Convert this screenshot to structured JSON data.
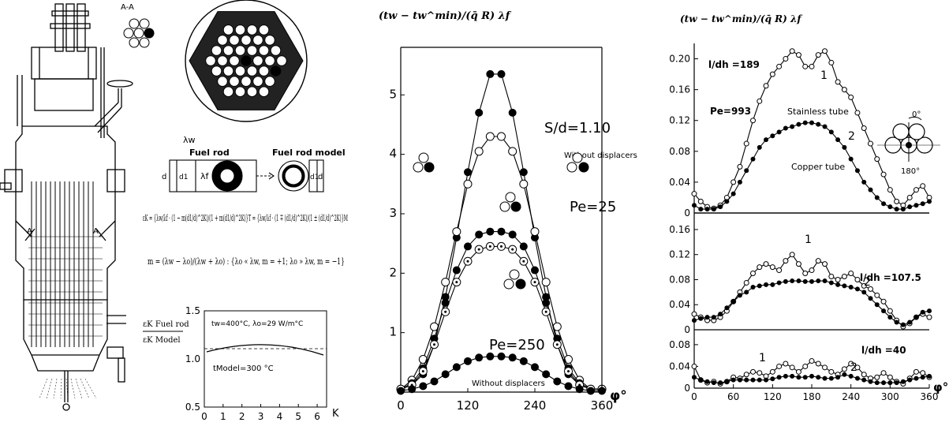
{
  "left_panel": {
    "section_label": "A-A",
    "fuel_rod_label": "Fuel rod",
    "fuel_rod_model_label": "Fuel rod model",
    "lambda_w": "λw",
    "lambda_f": "λf",
    "d_label": "d",
    "d1_label": "d1",
    "section_marker": "A",
    "eq1": "εK = {λw/λf · (1 − m(d1/d)^2K)/(1 + m(d1/d)^2K)}T = {λw/λf · (1 ∓ (d1/d)^2K)/(1 ± (d1/d)^2K)}M",
    "eq2": "m = (λw − λo)/(λw + λo) : {λo « λw, m = +1; λo » λw, m = −1}",
    "ratio_label_top": "εK Fuel rod",
    "ratio_label_bottom": "εK Model",
    "inset": {
      "annotation_top": "tw=400°C, λo=29 W/m°C",
      "annotation_bottom": "tModel=300 °C",
      "xlabel": "K",
      "xticks": [
        "0",
        "1",
        "2",
        "3",
        "4",
        "5",
        "6"
      ],
      "yticks": [
        "0.5",
        "1.0",
        "1.5"
      ]
    }
  },
  "chart_data": [
    {
      "type": "line",
      "ylabel": "(tw − tw^min)/(q̄ R) λf",
      "xlabel": "φ°",
      "xlim": [
        0,
        360
      ],
      "ylim": [
        0,
        5.8
      ],
      "xticks": [
        "0",
        "120",
        "240",
        "360"
      ],
      "yticks": [
        "1",
        "2",
        "3",
        "4",
        "5"
      ],
      "annotations": [
        "S/d=1.10",
        "Without displacers",
        "Pe=25",
        "Pe=250",
        "Without displacers"
      ],
      "series": [
        {
          "marker": "filled",
          "x": [
            0,
            20,
            40,
            60,
            80,
            100,
            120,
            140,
            160,
            180,
            200,
            220,
            240,
            260,
            280,
            300,
            320,
            340,
            360
          ],
          "values": [
            0.05,
            0.12,
            0.3,
            0.8,
            1.6,
            2.6,
            3.7,
            4.7,
            5.35,
            5.35,
            4.7,
            3.7,
            2.6,
            1.6,
            0.8,
            0.3,
            0.12,
            0.05,
            0.05
          ]
        },
        {
          "marker": "open",
          "x": [
            0,
            20,
            40,
            60,
            80,
            100,
            120,
            140,
            160,
            180,
            200,
            220,
            240,
            260,
            280,
            300,
            320,
            340,
            360
          ],
          "values": [
            0.05,
            0.2,
            0.55,
            1.1,
            1.85,
            2.7,
            3.5,
            4.05,
            4.3,
            4.3,
            4.05,
            3.5,
            2.7,
            1.85,
            1.1,
            0.55,
            0.2,
            0.05,
            0.05
          ]
        },
        {
          "marker": "filled",
          "x": [
            0,
            20,
            40,
            60,
            80,
            100,
            120,
            140,
            160,
            180,
            200,
            220,
            240,
            260,
            280,
            300,
            320,
            340,
            360
          ],
          "values": [
            0.05,
            0.15,
            0.4,
            0.9,
            1.5,
            2.05,
            2.45,
            2.65,
            2.7,
            2.7,
            2.65,
            2.45,
            2.05,
            1.5,
            0.9,
            0.4,
            0.15,
            0.05,
            0.05
          ]
        },
        {
          "marker": "dotted",
          "x": [
            0,
            20,
            40,
            60,
            80,
            100,
            120,
            140,
            160,
            180,
            200,
            220,
            240,
            260,
            280,
            300,
            320,
            340,
            360
          ],
          "values": [
            0.05,
            0.12,
            0.35,
            0.8,
            1.35,
            1.85,
            2.2,
            2.4,
            2.45,
            2.45,
            2.4,
            2.2,
            1.85,
            1.35,
            0.8,
            0.35,
            0.12,
            0.05,
            0.05
          ]
        },
        {
          "marker": "filled",
          "x": [
            0,
            20,
            40,
            60,
            80,
            100,
            120,
            140,
            160,
            180,
            200,
            220,
            240,
            260,
            280,
            300,
            320,
            340,
            360
          ],
          "values": [
            0.02,
            0.05,
            0.1,
            0.18,
            0.3,
            0.42,
            0.52,
            0.58,
            0.6,
            0.6,
            0.58,
            0.52,
            0.42,
            0.3,
            0.18,
            0.1,
            0.05,
            0.02,
            0.02
          ]
        }
      ]
    },
    {
      "type": "line",
      "ylabel": "(tw − tw^min)/(q̄ R) λf",
      "xlabel": "φ°",
      "xlim": [
        0,
        360
      ],
      "ylim": [
        0,
        0.22
      ],
      "yticks": [
        "0",
        "0.04",
        "0.08",
        "0.12",
        "0.16",
        "0.20"
      ],
      "annotations": [
        "l/dh =189",
        "Pe=993",
        "Stainless tube",
        "Copper tube",
        "1",
        "2",
        "0°",
        "180°"
      ],
      "series": [
        {
          "name": "1",
          "marker": "open",
          "x": [
            0,
            10,
            20,
            30,
            40,
            50,
            60,
            70,
            80,
            90,
            100,
            110,
            120,
            130,
            140,
            150,
            160,
            170,
            180,
            190,
            200,
            210,
            220,
            230,
            240,
            250,
            260,
            270,
            280,
            290,
            300,
            310,
            320,
            330,
            340,
            350,
            360
          ],
          "values": [
            0.025,
            0.015,
            0.008,
            0.006,
            0.01,
            0.02,
            0.04,
            0.06,
            0.09,
            0.12,
            0.145,
            0.165,
            0.18,
            0.19,
            0.2,
            0.21,
            0.205,
            0.19,
            0.19,
            0.205,
            0.21,
            0.195,
            0.17,
            0.16,
            0.15,
            0.13,
            0.11,
            0.09,
            0.07,
            0.05,
            0.03,
            0.015,
            0.01,
            0.02,
            0.03,
            0.035,
            0.02
          ]
        },
        {
          "name": "2",
          "marker": "filled",
          "x": [
            0,
            10,
            20,
            30,
            40,
            50,
            60,
            70,
            80,
            90,
            100,
            110,
            120,
            130,
            140,
            150,
            160,
            170,
            180,
            190,
            200,
            210,
            220,
            230,
            240,
            250,
            260,
            270,
            280,
            290,
            300,
            310,
            320,
            330,
            340,
            350,
            360
          ],
          "values": [
            0.01,
            0.005,
            0.005,
            0.005,
            0.008,
            0.015,
            0.025,
            0.04,
            0.055,
            0.07,
            0.085,
            0.095,
            0.1,
            0.105,
            0.11,
            0.112,
            0.115,
            0.117,
            0.117,
            0.115,
            0.112,
            0.105,
            0.095,
            0.085,
            0.07,
            0.055,
            0.04,
            0.03,
            0.02,
            0.012,
            0.008,
            0.005,
            0.005,
            0.008,
            0.01,
            0.012,
            0.015
          ]
        }
      ]
    },
    {
      "type": "line",
      "xlim": [
        0,
        360
      ],
      "ylim": [
        0,
        0.17
      ],
      "yticks": [
        "0",
        "0.04",
        "0.08",
        "0.12",
        "0.16"
      ],
      "annotations": [
        "l/dh =107.5",
        "1",
        "2"
      ],
      "series": [
        {
          "name": "1",
          "marker": "open",
          "x": [
            0,
            10,
            20,
            30,
            40,
            50,
            60,
            70,
            80,
            90,
            100,
            110,
            120,
            130,
            140,
            150,
            160,
            170,
            180,
            190,
            200,
            210,
            220,
            230,
            240,
            250,
            260,
            270,
            280,
            290,
            300,
            310,
            320,
            330,
            340,
            350,
            360
          ],
          "values": [
            0.025,
            0.02,
            0.015,
            0.015,
            0.02,
            0.03,
            0.045,
            0.06,
            0.075,
            0.09,
            0.1,
            0.105,
            0.1,
            0.095,
            0.11,
            0.12,
            0.105,
            0.09,
            0.095,
            0.11,
            0.105,
            0.085,
            0.08,
            0.085,
            0.09,
            0.08,
            0.07,
            0.065,
            0.055,
            0.045,
            0.03,
            0.015,
            0.005,
            0.01,
            0.02,
            0.025,
            0.02
          ]
        },
        {
          "name": "2",
          "marker": "filled",
          "x": [
            0,
            10,
            20,
            30,
            40,
            50,
            60,
            70,
            80,
            90,
            100,
            110,
            120,
            130,
            140,
            150,
            160,
            170,
            180,
            190,
            200,
            210,
            220,
            230,
            240,
            250,
            260,
            270,
            280,
            290,
            300,
            310,
            320,
            330,
            340,
            350,
            360
          ],
          "values": [
            0.015,
            0.018,
            0.02,
            0.02,
            0.025,
            0.035,
            0.045,
            0.055,
            0.06,
            0.068,
            0.07,
            0.072,
            0.072,
            0.075,
            0.077,
            0.078,
            0.078,
            0.077,
            0.077,
            0.078,
            0.078,
            0.075,
            0.072,
            0.07,
            0.068,
            0.065,
            0.06,
            0.05,
            0.04,
            0.03,
            0.02,
            0.012,
            0.008,
            0.012,
            0.02,
            0.028,
            0.03
          ]
        }
      ]
    },
    {
      "type": "line",
      "xlabel": "φ°",
      "xlim": [
        0,
        360
      ],
      "ylim": [
        0,
        0.09
      ],
      "xticks": [
        "0",
        "60",
        "120",
        "180",
        "240",
        "300",
        "360"
      ],
      "yticks": [
        "0",
        "0.04",
        "0.08"
      ],
      "annotations": [
        "l/dh =40",
        "1",
        "2"
      ],
      "series": [
        {
          "name": "1",
          "marker": "open",
          "x": [
            0,
            10,
            20,
            30,
            40,
            50,
            60,
            70,
            80,
            90,
            100,
            110,
            120,
            130,
            140,
            150,
            160,
            170,
            180,
            190,
            200,
            210,
            220,
            230,
            240,
            250,
            260,
            270,
            280,
            290,
            300,
            310,
            320,
            330,
            340,
            350,
            360
          ],
          "values": [
            0.04,
            0.015,
            0.01,
            0.012,
            0.008,
            0.012,
            0.02,
            0.018,
            0.025,
            0.03,
            0.028,
            0.022,
            0.03,
            0.04,
            0.045,
            0.038,
            0.03,
            0.04,
            0.05,
            0.045,
            0.038,
            0.03,
            0.025,
            0.035,
            0.045,
            0.038,
            0.025,
            0.018,
            0.02,
            0.028,
            0.02,
            0.012,
            0.008,
            0.018,
            0.03,
            0.028,
            0.02
          ]
        },
        {
          "name": "2",
          "marker": "filled",
          "x": [
            0,
            10,
            20,
            30,
            40,
            50,
            60,
            70,
            80,
            90,
            100,
            110,
            120,
            130,
            140,
            150,
            160,
            170,
            180,
            190,
            200,
            210,
            220,
            230,
            240,
            250,
            260,
            270,
            280,
            290,
            300,
            310,
            320,
            330,
            340,
            350,
            360
          ],
          "values": [
            0.02,
            0.015,
            0.012,
            0.01,
            0.01,
            0.012,
            0.015,
            0.015,
            0.015,
            0.015,
            0.015,
            0.015,
            0.017,
            0.02,
            0.022,
            0.022,
            0.02,
            0.02,
            0.022,
            0.02,
            0.018,
            0.018,
            0.02,
            0.025,
            0.022,
            0.018,
            0.015,
            0.012,
            0.01,
            0.01,
            0.01,
            0.01,
            0.012,
            0.015,
            0.018,
            0.02,
            0.022
          ]
        }
      ]
    }
  ]
}
